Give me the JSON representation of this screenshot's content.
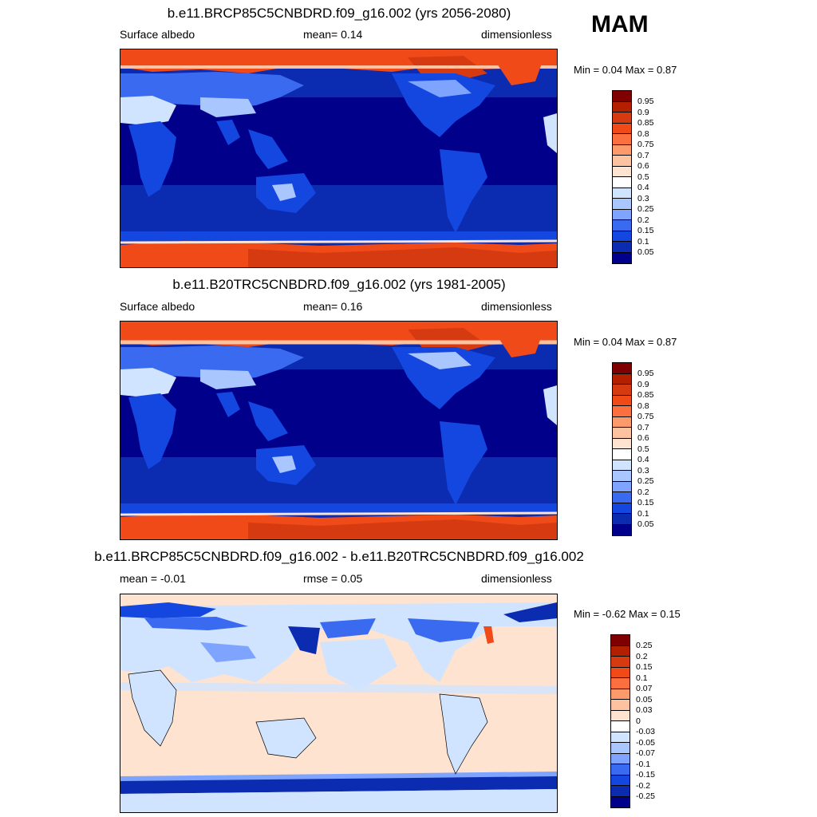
{
  "season": "MAM",
  "panels": [
    {
      "title": "b.e11.BRCP85C5CNBDRD.f09_g16.002 (yrs 2056-2080)",
      "left": "Surface albedo",
      "center": "mean=   0.14",
      "right": "dimensionless",
      "minmax": "Min =    0.04 Max =    0.87"
    },
    {
      "title": "b.e11.B20TRC5CNBDRD.f09_g16.002 (yrs 1981-2005)",
      "left": "Surface albedo",
      "center": "mean=   0.16",
      "right": "dimensionless",
      "minmax": "Min =    0.04 Max =    0.87"
    },
    {
      "title": "b.e11.BRCP85C5CNBDRD.f09_g16.002 - b.e11.B20TRC5CNBDRD.f09_g16.002",
      "left": "mean =  -0.01",
      "center": "rmse =   0.05",
      "right": "dimensionless",
      "minmax": "Min =  -0.62 Max =    0.15"
    }
  ],
  "colorbar_abs": {
    "labels": [
      "0.95",
      "0.9",
      "0.85",
      "0.8",
      "0.75",
      "0.7",
      "0.6",
      "0.5",
      "0.4",
      "0.3",
      "0.25",
      "0.2",
      "0.15",
      "0.1",
      "0.05"
    ],
    "colors": [
      "#7f0000",
      "#b22000",
      "#d63a10",
      "#f04a18",
      "#fc7040",
      "#fd9a6b",
      "#fdc3a0",
      "#fde3d0",
      "#ffffff",
      "#d0e4ff",
      "#aac6ff",
      "#7ea4ff",
      "#3a6af0",
      "#1446e0",
      "#0b2cb0",
      "#00008a"
    ]
  },
  "colorbar_diff": {
    "labels": [
      "0.25",
      "0.2",
      "0.15",
      "0.1",
      "0.07",
      "0.05",
      "0.03",
      "0",
      "-0.03",
      "-0.05",
      "-0.07",
      "-0.1",
      "-0.15",
      "-0.2",
      "-0.25"
    ],
    "colors": [
      "#7f0000",
      "#b22000",
      "#d63a10",
      "#f04a18",
      "#fc7040",
      "#fd9a6b",
      "#fdc3a0",
      "#fde3d0",
      "#ffffff",
      "#d0e4ff",
      "#aac6ff",
      "#7ea4ff",
      "#3a6af0",
      "#1446e0",
      "#0b2cb0",
      "#00008a"
    ]
  }
}
